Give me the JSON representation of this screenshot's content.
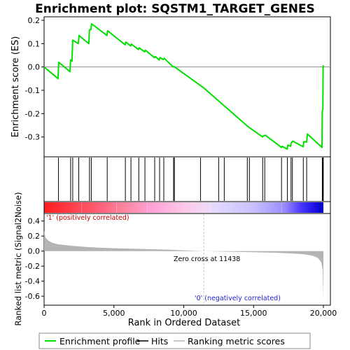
{
  "chart_data": {
    "type": "line",
    "title": "Enrichment plot: SQSTM1_TARGET_GENES",
    "xlabel": "Rank in Ordered Dataset",
    "ylabel_top": "Enrichment score (ES)",
    "ylabel_bottom": "Ranked list metric (Signal2Noise)",
    "xlim": [
      0,
      20500
    ],
    "ylim_top": [
      -0.385,
      0.215
    ],
    "ylim_bottom": [
      -0.72,
      0.5
    ],
    "x_ticks": [
      0,
      5000,
      10000,
      15000,
      20000
    ],
    "x_tick_labels": [
      "0",
      "5,000",
      "10,000",
      "15,000",
      "20,000"
    ],
    "y_ticks_top": [
      -0.3,
      -0.2,
      -0.1,
      0.0,
      0.1,
      0.2
    ],
    "y_tick_labels_top": [
      "-0.3",
      "-0.2",
      "-0.1",
      "0.0",
      "0.1",
      "0.2"
    ],
    "y_ticks_bottom": [
      -0.6,
      -0.4,
      -0.2,
      0.0,
      0.2,
      0.4
    ],
    "y_tick_labels_bottom": [
      "-0.6",
      "-0.4",
      "-0.2",
      "0.0",
      "0.2",
      "0.4"
    ],
    "enrichment_profile": [
      [
        0,
        0.0
      ],
      [
        1000,
        -0.05
      ],
      [
        1050,
        0.02
      ],
      [
        1850,
        -0.02
      ],
      [
        1900,
        0.03
      ],
      [
        2000,
        0.025
      ],
      [
        2050,
        0.115
      ],
      [
        2450,
        0.1
      ],
      [
        2500,
        0.135
      ],
      [
        3200,
        0.1
      ],
      [
        3250,
        0.16
      ],
      [
        3350,
        0.16
      ],
      [
        3400,
        0.185
      ],
      [
        4500,
        0.135
      ],
      [
        4550,
        0.155
      ],
      [
        5800,
        0.095
      ],
      [
        5850,
        0.107
      ],
      [
        6200,
        0.09
      ],
      [
        6250,
        0.098
      ],
      [
        6750,
        0.075
      ],
      [
        6800,
        0.082
      ],
      [
        7200,
        0.065
      ],
      [
        7250,
        0.072
      ],
      [
        7900,
        0.04
      ],
      [
        7950,
        0.045
      ],
      [
        8250,
        0.03
      ],
      [
        8300,
        0.04
      ],
      [
        8550,
        0.032
      ],
      [
        8600,
        0.037
      ],
      [
        9250,
        0.0
      ],
      [
        9300,
        0.002
      ],
      [
        9350,
        0.0
      ],
      [
        11438,
        -0.09
      ],
      [
        14550,
        -0.253
      ],
      [
        14650,
        -0.258
      ],
      [
        15650,
        -0.3
      ],
      [
        15700,
        -0.295
      ],
      [
        15850,
        -0.293
      ],
      [
        17000,
        -0.345
      ],
      [
        17050,
        -0.34
      ],
      [
        17400,
        -0.352
      ],
      [
        17450,
        -0.335
      ],
      [
        17650,
        -0.34
      ],
      [
        17700,
        -0.325
      ],
      [
        17800,
        -0.318
      ],
      [
        18550,
        -0.342
      ],
      [
        18600,
        -0.32
      ],
      [
        18800,
        -0.322
      ],
      [
        18850,
        -0.287
      ],
      [
        19900,
        -0.345
      ],
      [
        19920,
        -0.19
      ],
      [
        19960,
        -0.18
      ],
      [
        19980,
        0.005
      ],
      [
        20000,
        0.002
      ]
    ],
    "hits": [
      1030,
      1900,
      2050,
      2480,
      3250,
      3380,
      4520,
      5820,
      6220,
      6780,
      7220,
      7920,
      8270,
      8570,
      9270,
      9330,
      11200,
      12500,
      12900,
      14550,
      14700,
      15650,
      15800,
      17000,
      17420,
      17680,
      17780,
      18560,
      18800,
      19920,
      19960,
      19990
    ],
    "zero_cross": 11438,
    "zero_cross_label": "Zero cross at 11438",
    "positive_label": "'1' (positively correlated)",
    "negative_label": "'0' (negatively correlated)",
    "metric_profile": [
      [
        0,
        0.27
      ],
      [
        100,
        0.18
      ],
      [
        300,
        0.14
      ],
      [
        600,
        0.11
      ],
      [
        1000,
        0.09
      ],
      [
        2000,
        0.07
      ],
      [
        3000,
        0.055
      ],
      [
        4000,
        0.045
      ],
      [
        5000,
        0.038
      ],
      [
        7000,
        0.028
      ],
      [
        9000,
        0.018
      ],
      [
        11438,
        0.0
      ],
      [
        13000,
        -0.008
      ],
      [
        15000,
        -0.015
      ],
      [
        16500,
        -0.022
      ],
      [
        17500,
        -0.03
      ],
      [
        18500,
        -0.04
      ],
      [
        19200,
        -0.06
      ],
      [
        19600,
        -0.09
      ],
      [
        19850,
        -0.15
      ],
      [
        19950,
        -0.25
      ],
      [
        20000,
        -0.65
      ]
    ],
    "legend": [
      "Enrichment profile",
      "Hits",
      "Ranking metric scores"
    ],
    "colors": {
      "profile": "#00e000",
      "hits": "#000000",
      "metric_fill": "#b4b4b4",
      "positive_text": "#cc0000",
      "negative_text": "#2222cc",
      "zero_line": "#c8c8c8"
    }
  }
}
